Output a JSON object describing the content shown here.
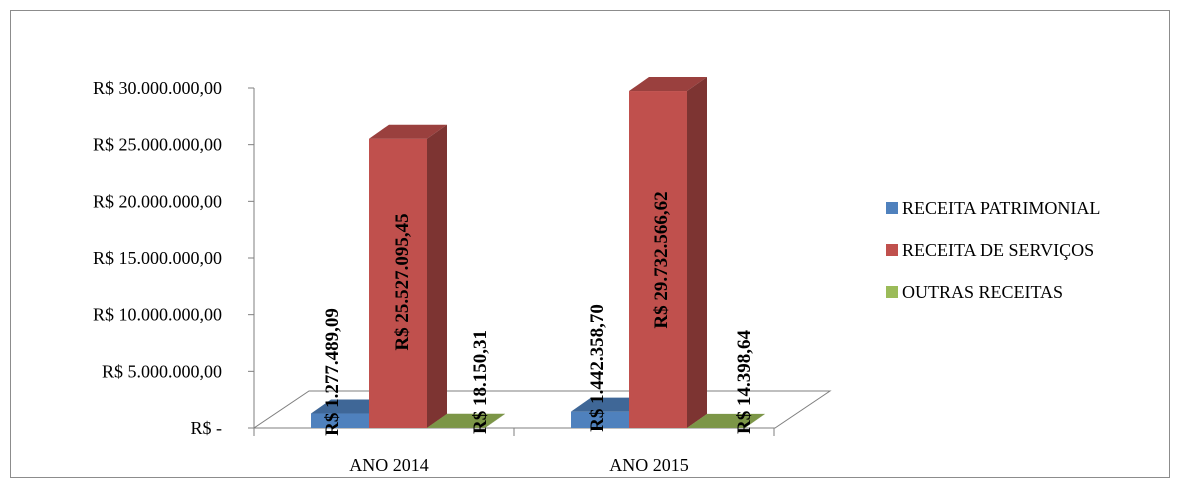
{
  "chart_data": {
    "type": "bar",
    "title": "",
    "xlabel": "",
    "ylabel": "",
    "ylim": [
      0,
      30000000
    ],
    "grid": false,
    "three_d": true,
    "legend_position": "right",
    "categories": [
      "ANO 2014",
      "ANO 2015"
    ],
    "y_ticks": [
      0,
      5000000,
      10000000,
      15000000,
      20000000,
      25000000,
      30000000
    ],
    "y_tick_labels": [
      "R$ -",
      "R$ 5.000.000,00",
      "R$ 10.000.000,00",
      "R$ 15.000.000,00",
      "R$ 20.000.000,00",
      "R$ 25.000.000,00",
      "R$ 30.000.000,00"
    ],
    "series": [
      {
        "name": "RECEITA PATRIMONIAL",
        "color": "#4f81bd",
        "values": [
          1277489.09,
          1442358.7
        ],
        "value_labels": [
          "R$ 1.277.489,09",
          "R$ 1.442.358,70"
        ]
      },
      {
        "name": "RECEITA DE SERVIÇOS",
        "color": "#c0504d",
        "values": [
          25527095.45,
          29732566.62
        ],
        "value_labels": [
          "R$ 25.527.095,45",
          "R$ 29.732.566,62"
        ]
      },
      {
        "name": "OUTRAS RECEITAS",
        "color": "#9bbb59",
        "values": [
          18150.31,
          14398.64
        ],
        "value_labels": [
          "R$ 18.150,31",
          "R$ 14.398,64"
        ]
      }
    ]
  }
}
